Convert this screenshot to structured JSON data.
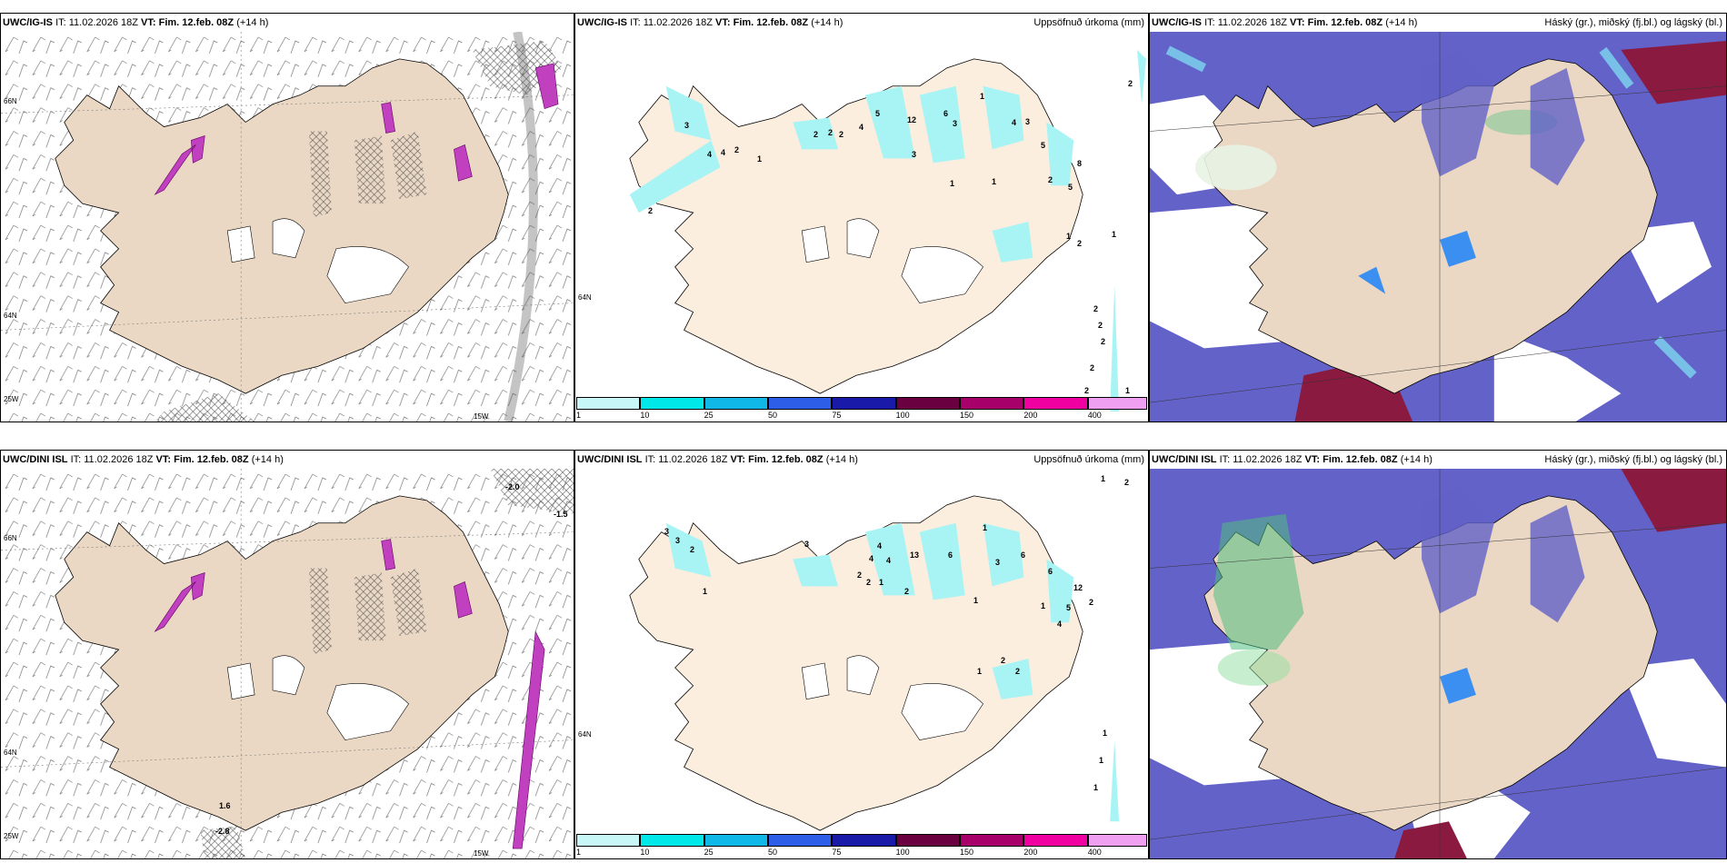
{
  "rows": [
    {
      "panels": [
        {
          "model": "UWC/IG-IS",
          "it": "IT: 11.02.2026 18Z",
          "vt": "VT: Fim. 12.feb. 08Z",
          "lead": "(+14 h)",
          "right": ""
        },
        {
          "model": "UWC/IG-IS",
          "it": "IT: 11.02.2026 18Z",
          "vt": "VT: Fim. 12.feb. 08Z",
          "lead": "(+14 h)",
          "right": "Uppsöfnuð úrkoma (mm)"
        },
        {
          "model": "UWC/IG-IS",
          "it": "IT: 11.02.2026 18Z",
          "vt": "VT: Fim. 12.feb. 08Z",
          "lead": "(+14 h)",
          "right": "Háský (gr.), miðský (fj.bl.) og lágský (bl.)"
        }
      ]
    },
    {
      "panels": [
        {
          "model": "UWC/DINI ISL",
          "it": "IT: 11.02.2026 18Z",
          "vt": "VT: Fim. 12.feb. 08Z",
          "lead": "(+14 h)",
          "right": ""
        },
        {
          "model": "UWC/DINI ISL",
          "it": "IT: 11.02.2026 18Z",
          "vt": "VT: Fim. 12.feb. 08Z",
          "lead": "(+14 h)",
          "right": "Uppsöfnuð úrkoma (mm)"
        },
        {
          "model": "UWC/DINI ISL",
          "it": "IT: 11.02.2026 18Z",
          "vt": "VT: Fim. 12.feb. 08Z",
          "lead": "(+14 h)",
          "right": "Háský (gr.), miðský (fj.bl.) og lágský (bl.)"
        }
      ]
    }
  ],
  "coords": {
    "n66": "66N",
    "n64": "64N",
    "w25": "25W",
    "w15": "15W"
  },
  "legend": {
    "colors": [
      "#c8f7f7",
      "#00e8e8",
      "#10b8e8",
      "#2c5ee8",
      "#1a1aa8",
      "#6a0040",
      "#a8006a",
      "#f000a0",
      "#f0a0f0"
    ],
    "labels": [
      "1",
      "10",
      "25",
      "50",
      "75",
      "100",
      "150",
      "200",
      "400"
    ]
  },
  "precip_labels_top": [
    "4",
    "5",
    "12",
    "6",
    "1",
    "3",
    "4",
    "2",
    "2",
    "2",
    "3",
    "3",
    "1",
    "3",
    "5",
    "8",
    "2",
    "5",
    "1",
    "2",
    "2",
    "1",
    "2",
    "2",
    "2",
    "2",
    "2",
    "2",
    "1",
    "1",
    "1",
    "2",
    "4",
    "4"
  ],
  "precip_labels_bottom": [
    "3",
    "4",
    "4",
    "13",
    "6",
    "1",
    "3",
    "6",
    "4",
    "2",
    "2",
    "1",
    "2",
    "3",
    "1",
    "1",
    "6",
    "12",
    "2",
    "5",
    "4",
    "2",
    "2",
    "1",
    "1",
    "1",
    "1",
    "1",
    "1",
    "2",
    "3",
    "2"
  ],
  "colors": {
    "land": "#ead8c4",
    "land_light": "#fbeede",
    "sea_cloud": "#6262c8",
    "cloud_light": "#3b8ff0",
    "cloud_cyan": "#7ed8f0",
    "high_cloud": "#8a1a40",
    "mid_green": "#50c080",
    "precip_cyan": "#a8f4f4"
  },
  "extra_labels": {
    "minus2": "-2.0",
    "minus15": "-1.5",
    "v16": "1.6",
    "v28": "-2.8"
  }
}
